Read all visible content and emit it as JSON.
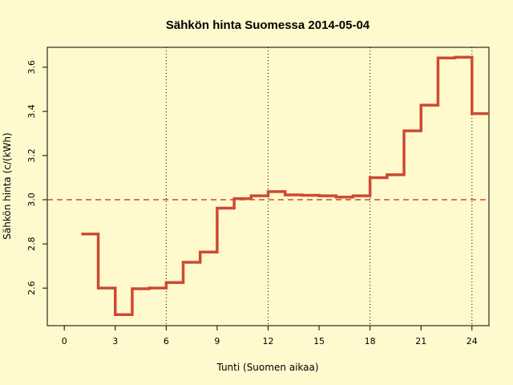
{
  "chart_data": {
    "type": "line",
    "step": "post",
    "title": "Sähkön hinta Suomessa 2014-05-04",
    "xlabel": "Tunti (Suomen aikaa)",
    "ylabel": "Sähkön hinta (c/(kWh)",
    "xlim": [
      -1,
      25
    ],
    "ylim": [
      2.43,
      3.69
    ],
    "xticks": [
      0,
      3,
      6,
      9,
      12,
      15,
      18,
      21,
      24
    ],
    "yticks": [
      2.6,
      2.8,
      3.0,
      3.2,
      3.4,
      3.6
    ],
    "vlines": [
      6,
      12,
      18,
      24
    ],
    "hline": 3.0,
    "grid": false,
    "series": [
      {
        "color": "#cd4a32",
        "x": [
          1,
          2,
          3,
          4,
          5,
          6,
          7,
          8,
          9,
          10,
          11,
          12,
          13,
          14,
          15,
          16,
          17,
          18,
          19,
          20,
          21,
          22,
          23,
          24
        ],
        "values": [
          2.845,
          2.6,
          2.48,
          2.597,
          2.6,
          2.625,
          2.717,
          2.763,
          2.962,
          3.005,
          3.018,
          3.037,
          3.022,
          3.02,
          3.018,
          3.012,
          3.018,
          3.1,
          3.113,
          3.312,
          3.428,
          3.642,
          3.645,
          3.39
        ]
      }
    ],
    "colors": {
      "background": "#fffacd",
      "line": "#cd4a32",
      "reference": "#cd4a32"
    }
  }
}
